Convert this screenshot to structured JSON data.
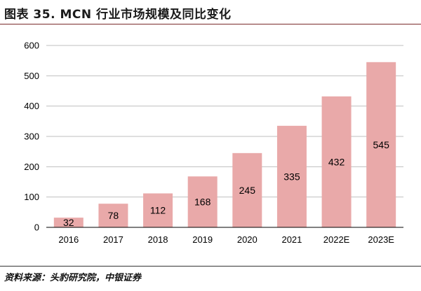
{
  "header": {
    "title": "图表 35. MCN 行业市场规模及同比变化"
  },
  "footer": {
    "source": "资料来源：头豹研究院，中银证券"
  },
  "colors": {
    "bar": "#e9a9a9",
    "grid": "#bfbfbf",
    "axis": "#000000"
  },
  "chart_data": {
    "type": "bar",
    "title": "MCN 行业市场规模及同比变化",
    "xlabel": "",
    "ylabel": "",
    "categories": [
      "2016",
      "2017",
      "2018",
      "2019",
      "2020",
      "2021",
      "2022E",
      "2023E"
    ],
    "values": [
      32,
      78,
      112,
      168,
      245,
      335,
      432,
      545
    ],
    "data_labels": [
      "32",
      "78",
      "112",
      "168",
      "245",
      "335",
      "432",
      "545"
    ],
    "ylim": [
      0,
      600
    ],
    "yticks": [
      "0",
      "100",
      "200",
      "300",
      "400",
      "500",
      "600"
    ],
    "grid": true,
    "legend": "none"
  }
}
